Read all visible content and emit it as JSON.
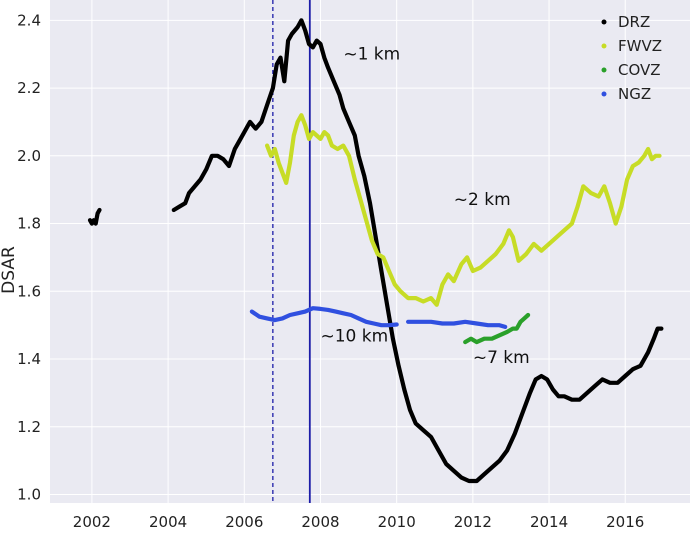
{
  "chart_data": {
    "type": "line",
    "title": "",
    "xlabel": "",
    "ylabel": "DSAR",
    "xlim": [
      2000.9,
      2017.7
    ],
    "ylim": [
      0.975,
      2.46
    ],
    "x_ticks": [
      2002,
      2004,
      2006,
      2008,
      2010,
      2012,
      2014,
      2016
    ],
    "y_ticks": [
      1.0,
      1.2,
      1.4,
      1.6,
      1.8,
      2.0,
      2.2,
      2.4
    ],
    "y_tick_labels": [
      "1.0",
      "1.2",
      "1.4",
      "1.6",
      "1.8",
      "2.0",
      "2.2",
      "2.4"
    ],
    "grid": true,
    "legend_position": "top-right",
    "colors": {
      "background": "#eaeaf2",
      "grid": "#ffffff",
      "DRZ": "#000000",
      "FWVZ": "#c7dc26",
      "COVZ": "#2aa02a",
      "NGZ": "#3050e0",
      "vline": "#1c1ca8"
    },
    "vertical_lines": [
      {
        "x": 2006.75,
        "style": "dashed"
      },
      {
        "x": 2007.72,
        "style": "solid"
      }
    ],
    "annotations": [
      {
        "text": "~1 km",
        "x": 2008.6,
        "y": 2.285
      },
      {
        "text": "~2 km",
        "x": 2011.5,
        "y": 1.855
      },
      {
        "text": "~10 km",
        "x": 2008.0,
        "y": 1.452
      },
      {
        "text": "~7 km",
        "x": 2012.0,
        "y": 1.388
      }
    ],
    "series": [
      {
        "name": "DRZ",
        "segments": [
          [
            [
              2001.95,
              1.81
            ],
            [
              2002.0,
              1.8
            ],
            [
              2002.05,
              1.81
            ],
            [
              2002.1,
              1.8
            ],
            [
              2002.15,
              1.83
            ],
            [
              2002.2,
              1.84
            ]
          ],
          [
            [
              2004.15,
              1.84
            ],
            [
              2004.3,
              1.85
            ],
            [
              2004.45,
              1.86
            ],
            [
              2004.55,
              1.89
            ],
            [
              2004.7,
              1.91
            ],
            [
              2004.85,
              1.93
            ],
            [
              2005.0,
              1.96
            ],
            [
              2005.15,
              2.0
            ],
            [
              2005.3,
              2.0
            ],
            [
              2005.45,
              1.99
            ],
            [
              2005.6,
              1.97
            ],
            [
              2005.75,
              2.02
            ],
            [
              2005.85,
              2.04
            ],
            [
              2006.0,
              2.07
            ],
            [
              2006.15,
              2.1
            ],
            [
              2006.3,
              2.08
            ],
            [
              2006.45,
              2.1
            ],
            [
              2006.6,
              2.15
            ],
            [
              2006.75,
              2.2
            ],
            [
              2006.85,
              2.27
            ],
            [
              2006.95,
              2.29
            ],
            [
              2007.05,
              2.22
            ],
            [
              2007.15,
              2.34
            ],
            [
              2007.25,
              2.36
            ],
            [
              2007.4,
              2.38
            ],
            [
              2007.5,
              2.4
            ],
            [
              2007.6,
              2.37
            ],
            [
              2007.7,
              2.33
            ],
            [
              2007.8,
              2.32
            ],
            [
              2007.9,
              2.34
            ],
            [
              2008.0,
              2.33
            ],
            [
              2008.1,
              2.29
            ],
            [
              2008.2,
              2.26
            ],
            [
              2008.35,
              2.22
            ],
            [
              2008.5,
              2.18
            ],
            [
              2008.6,
              2.14
            ],
            [
              2008.75,
              2.1
            ],
            [
              2008.9,
              2.06
            ],
            [
              2009.0,
              2.0
            ],
            [
              2009.15,
              1.94
            ],
            [
              2009.3,
              1.86
            ],
            [
              2009.45,
              1.76
            ],
            [
              2009.6,
              1.66
            ],
            [
              2009.75,
              1.56
            ],
            [
              2009.9,
              1.46
            ],
            [
              2010.05,
              1.38
            ],
            [
              2010.2,
              1.31
            ],
            [
              2010.35,
              1.25
            ],
            [
              2010.5,
              1.21
            ],
            [
              2010.7,
              1.19
            ],
            [
              2010.9,
              1.17
            ],
            [
              2011.1,
              1.13
            ],
            [
              2011.3,
              1.09
            ],
            [
              2011.5,
              1.07
            ],
            [
              2011.7,
              1.05
            ],
            [
              2011.9,
              1.04
            ],
            [
              2012.1,
              1.04
            ],
            [
              2012.3,
              1.06
            ],
            [
              2012.5,
              1.08
            ],
            [
              2012.7,
              1.1
            ],
            [
              2012.9,
              1.13
            ],
            [
              2013.1,
              1.18
            ],
            [
              2013.3,
              1.24
            ],
            [
              2013.5,
              1.3
            ],
            [
              2013.65,
              1.34
            ],
            [
              2013.8,
              1.35
            ],
            [
              2013.95,
              1.34
            ],
            [
              2014.1,
              1.31
            ],
            [
              2014.25,
              1.29
            ],
            [
              2014.4,
              1.29
            ],
            [
              2014.6,
              1.28
            ],
            [
              2014.8,
              1.28
            ],
            [
              2015.0,
              1.3
            ],
            [
              2015.2,
              1.32
            ],
            [
              2015.4,
              1.34
            ],
            [
              2015.6,
              1.33
            ],
            [
              2015.8,
              1.33
            ],
            [
              2016.0,
              1.35
            ],
            [
              2016.2,
              1.37
            ],
            [
              2016.4,
              1.38
            ],
            [
              2016.6,
              1.42
            ],
            [
              2016.75,
              1.46
            ],
            [
              2016.85,
              1.49
            ],
            [
              2016.95,
              1.49
            ]
          ]
        ]
      },
      {
        "name": "FWVZ",
        "segments": [
          [
            [
              2006.6,
              2.03
            ],
            [
              2006.7,
              2.0
            ],
            [
              2006.8,
              2.02
            ],
            [
              2006.9,
              1.98
            ],
            [
              2007.0,
              1.95
            ],
            [
              2007.1,
              1.92
            ],
            [
              2007.2,
              1.98
            ],
            [
              2007.3,
              2.06
            ],
            [
              2007.4,
              2.1
            ],
            [
              2007.5,
              2.12
            ],
            [
              2007.6,
              2.09
            ],
            [
              2007.7,
              2.05
            ],
            [
              2007.8,
              2.07
            ],
            [
              2007.9,
              2.06
            ],
            [
              2008.0,
              2.05
            ],
            [
              2008.1,
              2.07
            ],
            [
              2008.2,
              2.06
            ],
            [
              2008.3,
              2.03
            ],
            [
              2008.45,
              2.02
            ],
            [
              2008.6,
              2.03
            ],
            [
              2008.75,
              2.0
            ],
            [
              2008.9,
              1.93
            ],
            [
              2009.05,
              1.87
            ],
            [
              2009.2,
              1.81
            ],
            [
              2009.35,
              1.75
            ],
            [
              2009.5,
              1.71
            ],
            [
              2009.65,
              1.7
            ],
            [
              2009.8,
              1.66
            ],
            [
              2009.95,
              1.62
            ],
            [
              2010.1,
              1.6
            ],
            [
              2010.3,
              1.58
            ],
            [
              2010.5,
              1.58
            ],
            [
              2010.7,
              1.57
            ],
            [
              2010.9,
              1.58
            ],
            [
              2011.05,
              1.56
            ],
            [
              2011.2,
              1.62
            ],
            [
              2011.35,
              1.65
            ],
            [
              2011.5,
              1.63
            ],
            [
              2011.7,
              1.68
            ],
            [
              2011.85,
              1.7
            ],
            [
              2012.0,
              1.66
            ],
            [
              2012.2,
              1.67
            ],
            [
              2012.4,
              1.69
            ],
            [
              2012.6,
              1.71
            ],
            [
              2012.8,
              1.74
            ],
            [
              2012.95,
              1.78
            ],
            [
              2013.05,
              1.76
            ],
            [
              2013.2,
              1.69
            ],
            [
              2013.4,
              1.71
            ],
            [
              2013.6,
              1.74
            ],
            [
              2013.8,
              1.72
            ],
            [
              2014.0,
              1.74
            ],
            [
              2014.2,
              1.76
            ],
            [
              2014.4,
              1.78
            ],
            [
              2014.6,
              1.8
            ],
            [
              2014.75,
              1.85
            ],
            [
              2014.9,
              1.91
            ],
            [
              2015.1,
              1.89
            ],
            [
              2015.3,
              1.88
            ],
            [
              2015.45,
              1.91
            ],
            [
              2015.6,
              1.86
            ],
            [
              2015.75,
              1.8
            ],
            [
              2015.9,
              1.85
            ],
            [
              2016.05,
              1.93
            ],
            [
              2016.2,
              1.97
            ],
            [
              2016.35,
              1.98
            ],
            [
              2016.5,
              2.0
            ],
            [
              2016.6,
              2.02
            ],
            [
              2016.7,
              1.99
            ],
            [
              2016.8,
              2.0
            ],
            [
              2016.9,
              2.0
            ]
          ]
        ]
      },
      {
        "name": "COVZ",
        "segments": [
          [
            [
              2011.8,
              1.45
            ],
            [
              2011.95,
              1.46
            ],
            [
              2012.1,
              1.45
            ],
            [
              2012.3,
              1.46
            ],
            [
              2012.5,
              1.46
            ],
            [
              2012.7,
              1.47
            ],
            [
              2012.9,
              1.48
            ],
            [
              2013.05,
              1.49
            ],
            [
              2013.15,
              1.49
            ],
            [
              2013.25,
              1.51
            ],
            [
              2013.35,
              1.52
            ],
            [
              2013.45,
              1.53
            ]
          ]
        ]
      },
      {
        "name": "NGZ",
        "segments": [
          [
            [
              2006.2,
              1.54
            ],
            [
              2006.4,
              1.525
            ],
            [
              2006.6,
              1.52
            ],
            [
              2006.8,
              1.515
            ],
            [
              2007.0,
              1.52
            ],
            [
              2007.2,
              1.53
            ],
            [
              2007.4,
              1.535
            ],
            [
              2007.6,
              1.54
            ],
            [
              2007.8,
              1.55
            ],
            [
              2008.0,
              1.548
            ],
            [
              2008.2,
              1.545
            ],
            [
              2008.4,
              1.54
            ],
            [
              2008.6,
              1.535
            ],
            [
              2008.8,
              1.53
            ],
            [
              2009.0,
              1.52
            ],
            [
              2009.2,
              1.51
            ],
            [
              2009.4,
              1.505
            ],
            [
              2009.6,
              1.5
            ],
            [
              2009.8,
              1.5
            ],
            [
              2010.0,
              1.502
            ]
          ],
          [
            [
              2010.3,
              1.51
            ],
            [
              2010.6,
              1.51
            ],
            [
              2010.9,
              1.51
            ],
            [
              2011.2,
              1.505
            ],
            [
              2011.5,
              1.505
            ],
            [
              2011.8,
              1.51
            ],
            [
              2012.1,
              1.505
            ],
            [
              2012.4,
              1.5
            ],
            [
              2012.7,
              1.5
            ],
            [
              2012.85,
              1.495
            ]
          ]
        ]
      }
    ]
  }
}
